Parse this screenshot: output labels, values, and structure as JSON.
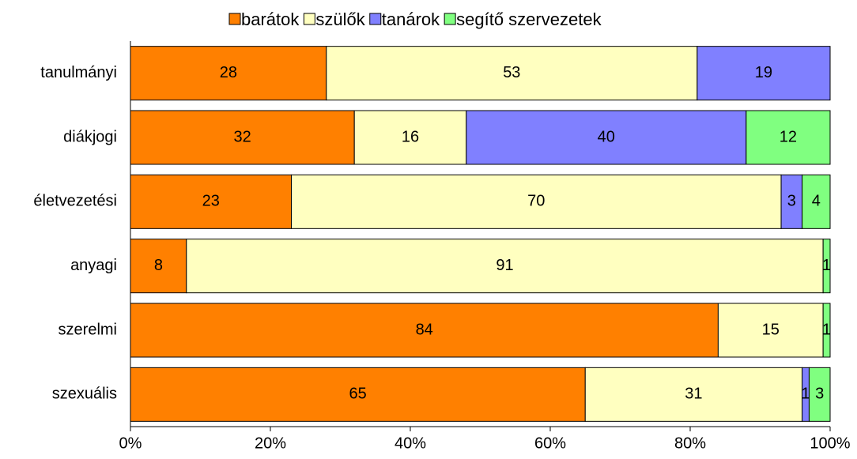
{
  "chart_data": {
    "type": "stacked-barh",
    "categories": [
      "tanulmányi",
      "diákjogi",
      "életvezetési",
      "anyagi",
      "szerelmi",
      "szexuális"
    ],
    "series": [
      {
        "name": "barátok",
        "color": "#ff8000",
        "values": [
          28,
          32,
          23,
          8,
          84,
          65
        ]
      },
      {
        "name": "szülők",
        "color": "#ffffc0",
        "values": [
          53,
          16,
          70,
          91,
          15,
          31
        ]
      },
      {
        "name": "tanárok",
        "color": "#8080ff",
        "values": [
          19,
          40,
          3,
          null,
          null,
          1
        ]
      },
      {
        "name": "segítő szervezetek",
        "color": "#80ff80",
        "values": [
          null,
          12,
          4,
          1,
          1,
          3
        ]
      }
    ],
    "xlim": [
      0,
      100
    ],
    "xticks": [
      {
        "value": 0,
        "label": "0%"
      },
      {
        "value": 20,
        "label": "20%"
      },
      {
        "value": 40,
        "label": "40%"
      },
      {
        "value": 60,
        "label": "60%"
      },
      {
        "value": 80,
        "label": "80%"
      },
      {
        "value": 100,
        "label": "100%"
      }
    ],
    "legend": "top"
  }
}
